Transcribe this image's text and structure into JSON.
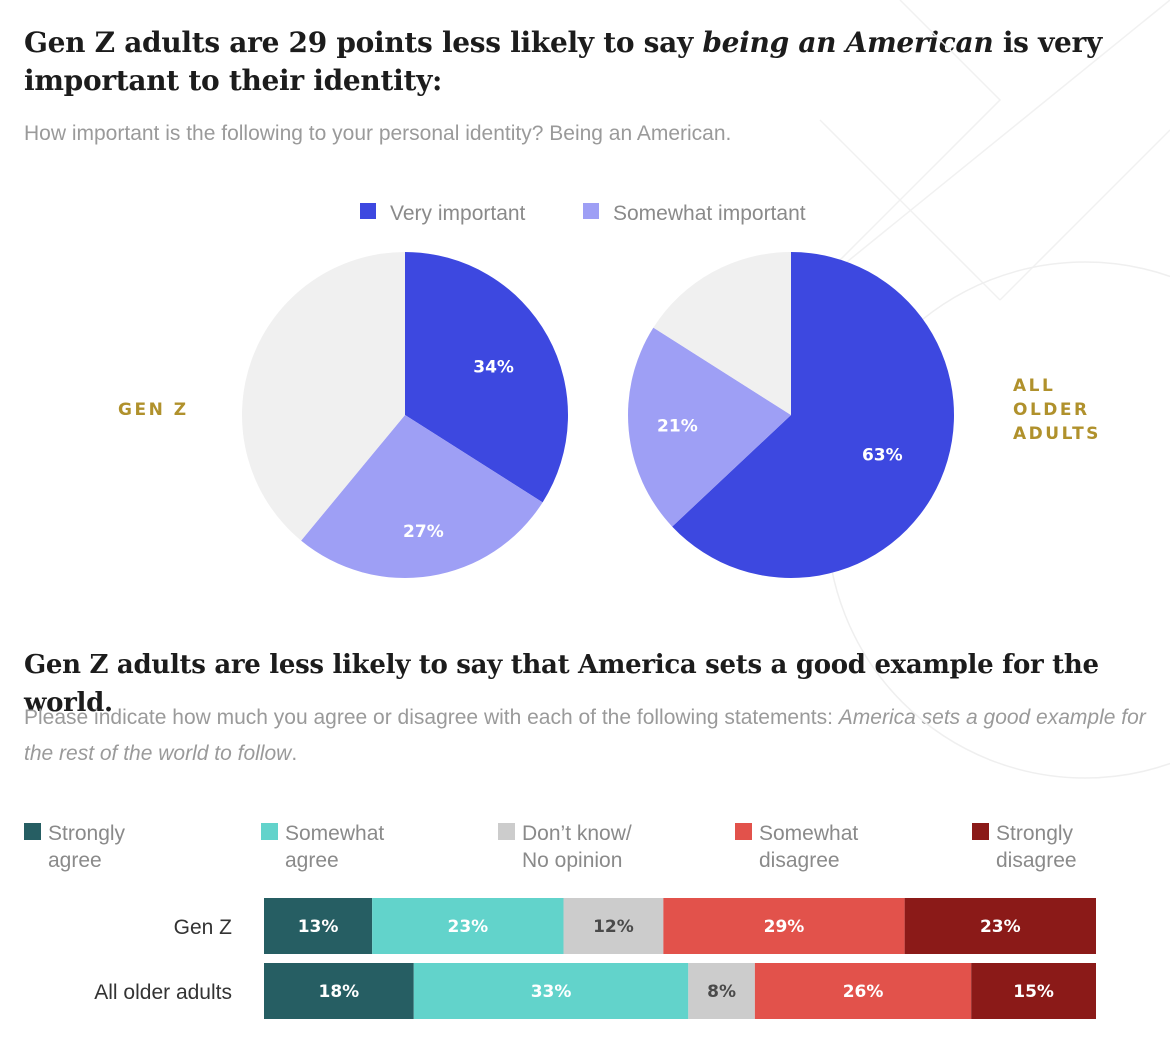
{
  "chart_data": [
    {
      "type": "pie",
      "title": "Gen Z adults are 29 points less likely to say being an American is very important to their identity:",
      "title_parts": {
        "before": "Gen Z adults are 29 points less likely to say ",
        "emphasis": "being an American",
        "after": " is very important to their identity:"
      },
      "subtitle": "How important is the following to your personal identity? Being an American.",
      "legend": [
        {
          "label": "Very important",
          "color": "#3d48e0"
        },
        {
          "label": "Somewhat important",
          "color": "#9e9ff5"
        }
      ],
      "legend_position": "top-center",
      "pies": [
        {
          "name": "GEN Z",
          "slices": [
            {
              "label": "Very important",
              "value": 34,
              "display": "34%",
              "color": "#3d48e0"
            },
            {
              "label": "Somewhat important",
              "value": 27,
              "display": "27%",
              "color": "#9e9ff5"
            },
            {
              "label": "",
              "value": 39,
              "display": "",
              "color": "#f0f0f0"
            }
          ]
        },
        {
          "name": "ALL OLDER ADULTS",
          "name_lines": [
            "ALL",
            "OLDER",
            "ADULTS"
          ],
          "slices": [
            {
              "label": "Very important",
              "value": 63,
              "display": "63%",
              "color": "#3d48e0"
            },
            {
              "label": "Somewhat important",
              "value": 21,
              "display": "21%",
              "color": "#9e9ff5"
            },
            {
              "label": "",
              "value": 16,
              "display": "",
              "color": "#f0f0f0"
            }
          ]
        }
      ]
    },
    {
      "type": "bar",
      "orientation": "horizontal",
      "stacked": true,
      "title": "Gen Z adults are less likely to say that America sets a good example for the world.",
      "subtitle": "Please indicate how much you agree or disagree with each of the following statements: America sets a good example for the rest of the world to follow.",
      "subtitle_parts": {
        "before": "Please indicate how much you agree or disagree with each of the following statements: ",
        "emphasis": "America sets a good example for the rest of the world to follow",
        "after": "."
      },
      "legend_position": "top",
      "categories": [
        "Gen Z",
        "All older adults"
      ],
      "series": [
        {
          "name": "Strongly agree",
          "name_lines": [
            "Strongly",
            "agree"
          ],
          "color": "#265e63",
          "label_dark": false,
          "values": [
            13,
            18
          ]
        },
        {
          "name": "Somewhat agree",
          "name_lines": [
            "Somewhat",
            "agree"
          ],
          "color": "#62d3cb",
          "label_dark": false,
          "values": [
            23,
            33
          ]
        },
        {
          "name": "Don’t know/ No opinion",
          "name_lines": [
            "Don’t know/",
            "No opinion"
          ],
          "color": "#cccccc",
          "label_dark": true,
          "values": [
            12,
            8
          ]
        },
        {
          "name": "Somewhat disagree",
          "name_lines": [
            "Somewhat",
            "disagree"
          ],
          "color": "#e2524b",
          "label_dark": false,
          "values": [
            29,
            26
          ]
        },
        {
          "name": "Strongly disagree",
          "name_lines": [
            "Strongly",
            "disagree"
          ],
          "color": "#8b1a18",
          "label_dark": false,
          "values": [
            23,
            15
          ]
        }
      ],
      "value_suffix": "%"
    }
  ]
}
